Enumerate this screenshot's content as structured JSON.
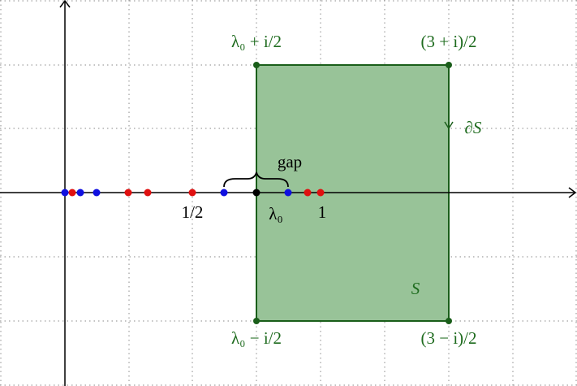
{
  "labels": {
    "top_left": "λ₀ + i/2",
    "top_right": "(3 + i)/2",
    "boundary": "∂S",
    "gap": "gap",
    "half": "1/2",
    "lambda0": "λ₀",
    "one": "1",
    "region": "S",
    "bottom_left": "λ₀ − i/2",
    "bottom_right": "(3 − i)/2"
  }
}
